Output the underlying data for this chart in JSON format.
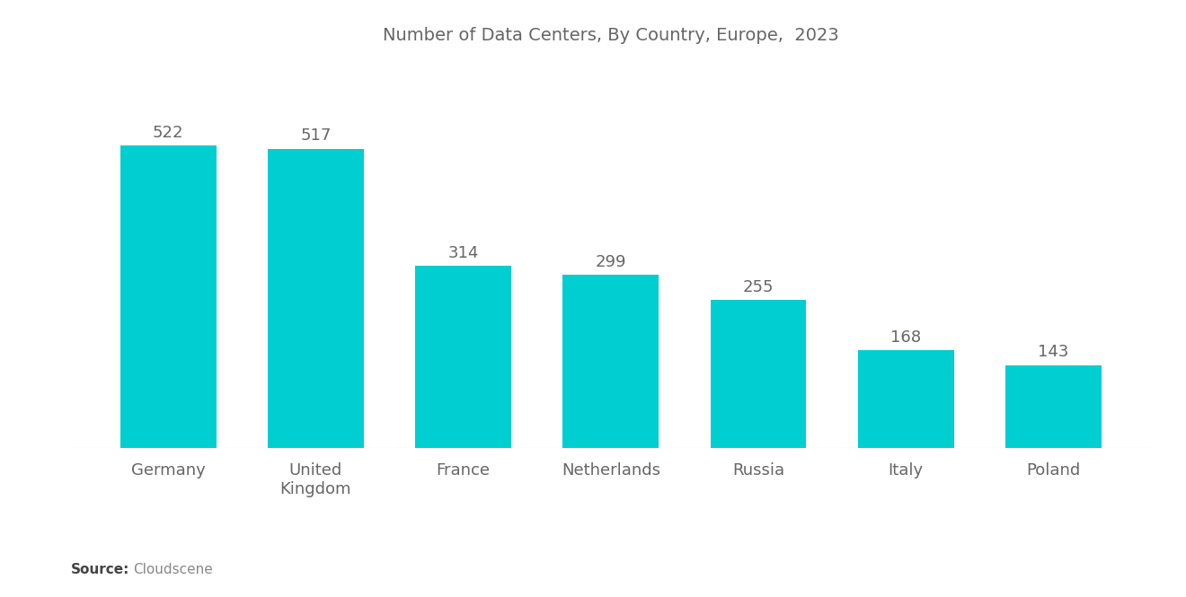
{
  "title": "Number of Data Centers, By Country, Europe,  2023",
  "categories": [
    "Germany",
    "United\nKingdom",
    "France",
    "Netherlands",
    "Russia",
    "Italy",
    "Poland"
  ],
  "values": [
    522,
    517,
    314,
    299,
    255,
    168,
    143
  ],
  "bar_color": "#00CED1",
  "source_bold": "Source:",
  "source_text": "Cloudscene",
  "title_fontsize": 14,
  "label_fontsize": 13,
  "value_fontsize": 13,
  "source_fontsize": 11,
  "background_color": "#ffffff",
  "text_color": "#666666",
  "ylim": [
    0,
    650
  ],
  "bar_width": 0.65
}
